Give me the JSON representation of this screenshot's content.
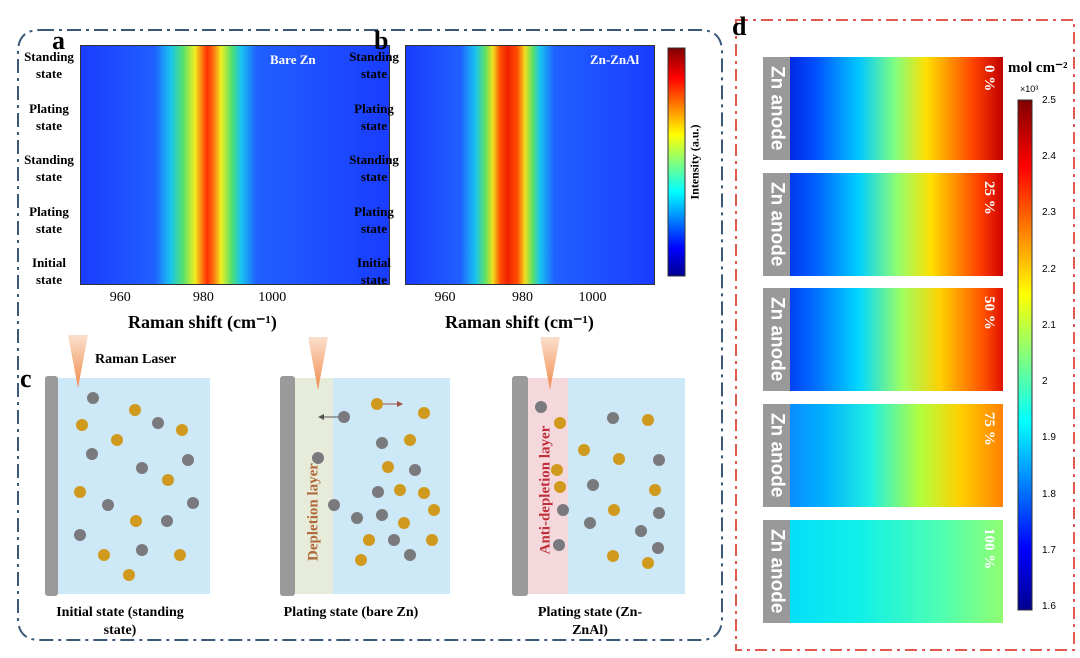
{
  "panel_a": {
    "letter": "a",
    "label": "Bare Zn",
    "y_labels": [
      "Standing state",
      "Plating state",
      "Standing state",
      "Plating state",
      "Initial state"
    ],
    "x_ticks": [
      "960",
      "980",
      "1000"
    ],
    "x_title": "Raman shift (cm⁻¹)"
  },
  "panel_b": {
    "letter": "b",
    "label": "Zn-ZnAl",
    "y_labels": [
      "Standing state",
      "Plating state",
      "Standing state",
      "Plating state",
      "Initial state"
    ],
    "x_ticks": [
      "960",
      "980",
      "1000"
    ],
    "x_title": "Raman shift (cm⁻¹)"
  },
  "intensity_bar": {
    "label": "Intensity (a.u.)"
  },
  "panel_c": {
    "letter": "c",
    "laser": "Raman Laser",
    "layers": [
      "Depletion layer",
      "Anti-depletion layer"
    ],
    "captions": [
      "Initial state (standing state)",
      "Plating state (bare Zn)",
      "Plating state (Zn-ZnAl)"
    ]
  },
  "panel_d": {
    "letter": "d",
    "unit": "mol cm⁻²",
    "scale": "×10³",
    "ticks": [
      "2.5",
      "2.4",
      "2.3",
      "2.2",
      "2.1",
      "2",
      "1.9",
      "1.8",
      "1.7",
      "1.6"
    ],
    "strips": [
      {
        "anode": "Zn anode",
        "percent": "0 %"
      },
      {
        "anode": "Zn anode",
        "percent": "25 %"
      },
      {
        "anode": "Zn anode",
        "percent": "50 %"
      },
      {
        "anode": "Zn anode",
        "percent": "75 %"
      },
      {
        "anode": "Zn anode",
        "percent": "100 %"
      }
    ]
  }
}
